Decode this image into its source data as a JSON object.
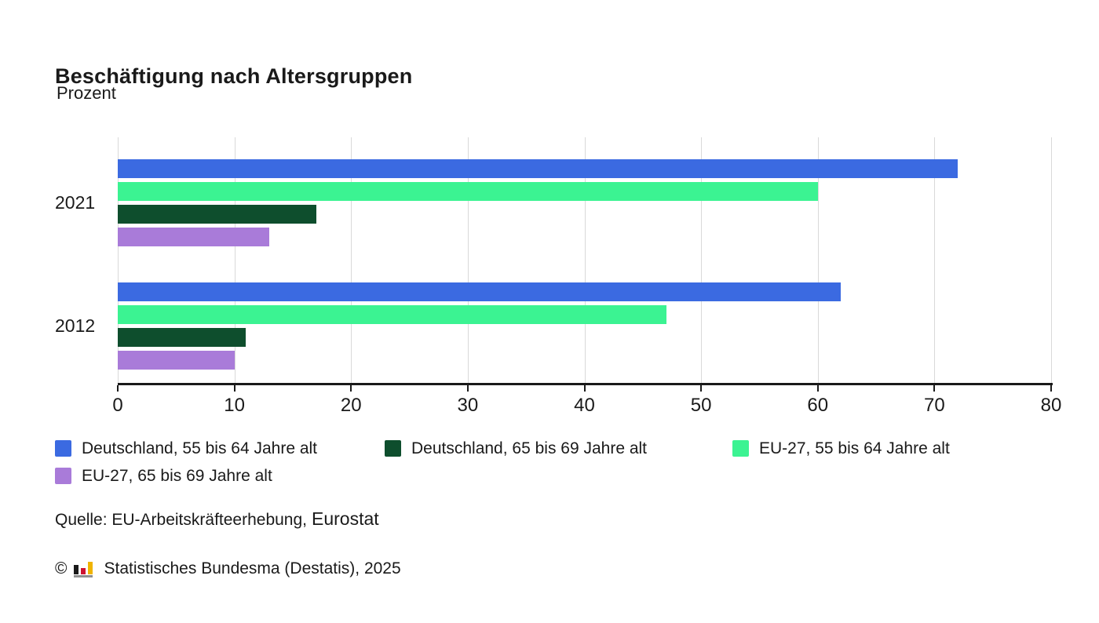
{
  "header": {
    "title": "Beschäftigung nach Altersgruppen",
    "subtitle": "Prozent"
  },
  "chart_data": {
    "type": "bar",
    "orientation": "horizontal",
    "title": "Beschäftigung nach Altersgruppen",
    "subtitle": "Prozent",
    "categories": [
      "2021",
      "2012"
    ],
    "series": [
      {
        "name": "Deutschland, 55 bis 64 Jahre alt",
        "color": "#3b6ae1",
        "values": [
          72,
          62
        ]
      },
      {
        "name": "Deutschland, 65 bis 69 Jahre alt",
        "color": "#0e4e2d",
        "values": [
          17,
          11
        ]
      },
      {
        "name": "EU-27, 55 bis 64 Jahre alt",
        "color": "#3bf392",
        "values": [
          60,
          47
        ]
      },
      {
        "name": "EU-27, 65 bis 69 Jahre alt",
        "color": "#a97bd9",
        "values": [
          13,
          10
        ]
      }
    ],
    "bar_order": [
      0,
      2,
      1,
      3
    ],
    "xlim": [
      0,
      80
    ],
    "x_ticks": [
      "0",
      "10",
      "20",
      "30",
      "40",
      "50",
      "60",
      "70",
      "80"
    ],
    "grid": true,
    "gridline_color": "#d9d9d9",
    "axis_color": "#1a1a1a",
    "legend_position": "bottom"
  },
  "legend": {
    "items": [
      {
        "label": "Deutschland, 55 bis 64 Jahre alt",
        "color": "#3b6ae1"
      },
      {
        "label": "Deutschland, 65 bis 69 Jahre alt",
        "color": "#0e4e2d"
      },
      {
        "label": "EU-27, 55 bis 64 Jahre alt",
        "color": "#3bf392"
      },
      {
        "label": "EU-27, 65 bis 69 Jahre alt",
        "color": "#a97bd9"
      }
    ]
  },
  "footer": {
    "source_prefix": "Quelle: EU-Arbeitskräfteerhebung,",
    "source_suffix": "Eurostat",
    "copyright_symbol": "©",
    "copyright_text": "Statistisches Bundesma (Destatis), 2025"
  }
}
